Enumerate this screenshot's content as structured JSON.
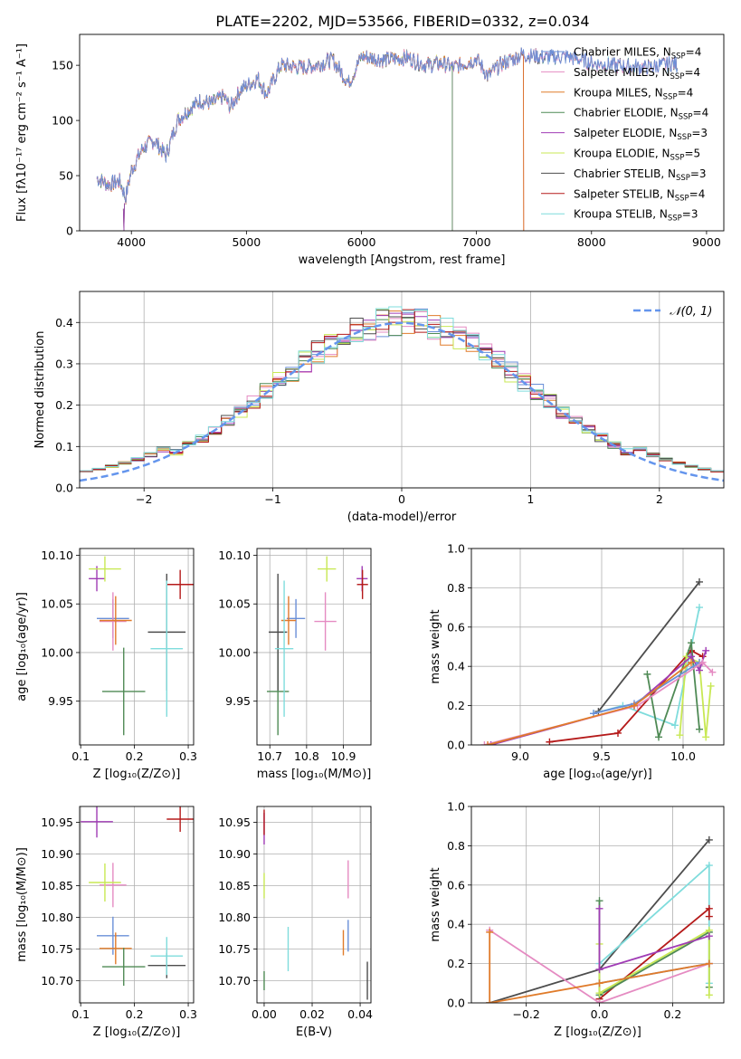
{
  "figure": {
    "title": "PLATE=2202, MJD=53566, FIBERID=0332, z=0.034"
  },
  "colors": {
    "chab_miles": "#6a8fd8",
    "salp_miles": "#e58bc2",
    "krou_miles": "#e07b2a",
    "chab_elodie": "#4f8a55",
    "salp_elodie": "#a03cb5",
    "krou_elodie": "#c8e854",
    "chab_stelib": "#4d4d4d",
    "salp_stelib": "#b51a1a",
    "krou_stelib": "#7fdcdc",
    "normal": "#6495ed"
  },
  "chart_data": [
    {
      "id": "spectrum",
      "type": "line",
      "xlabel": "wavelength [Angstrom, rest frame]",
      "ylabel": "Flux [fλ10⁻¹⁷ erg cm⁻² s⁻¹ A⁻¹]",
      "xlim": [
        3550,
        9150
      ],
      "ylim": [
        0,
        178
      ],
      "xticks": [
        4000,
        5000,
        6000,
        7000,
        8000,
        9000
      ],
      "yticks": [
        0,
        50,
        100,
        150
      ],
      "legend_position": "top-right",
      "series": [
        {
          "name": "Chabrier MILES, N",
          "sub": "SSP",
          "tail": "=4",
          "color": "chab_miles",
          "xmax": 8750
        },
        {
          "name": "Salpeter MILES, N",
          "sub": "SSP",
          "tail": "=4",
          "color": "salp_miles",
          "xmax": 8750
        },
        {
          "name": "Kroupa MILES, N",
          "sub": "SSP",
          "tail": "=4",
          "color": "krou_miles",
          "xmax": 7410
        },
        {
          "name": "Chabrier ELODIE, N",
          "sub": "SSP",
          "tail": "=4",
          "color": "chab_elodie",
          "xmax": 6790
        },
        {
          "name": "Salpeter ELODIE, N",
          "sub": "SSP",
          "tail": "=3",
          "color": "salp_elodie",
          "xmax": 6790
        },
        {
          "name": "Kroupa ELODIE, N",
          "sub": "SSP",
          "tail": "=5",
          "color": "krou_elodie",
          "xmax": 6790
        },
        {
          "name": "Chabrier STELIB, N",
          "sub": "SSP",
          "tail": "=3",
          "color": "chab_stelib",
          "xmax": 8750
        },
        {
          "name": "Salpeter STELIB, N",
          "sub": "SSP",
          "tail": "=4",
          "color": "salp_stelib",
          "xmax": 7410
        },
        {
          "name": "Kroupa STELIB, N",
          "sub": "SSP",
          "tail": "=3",
          "color": "krou_stelib",
          "xmax": 8750
        }
      ],
      "continuum": [
        [
          3700,
          48
        ],
        [
          3800,
          42
        ],
        [
          3900,
          45
        ],
        [
          3950,
          30
        ],
        [
          4000,
          55
        ],
        [
          4100,
          75
        ],
        [
          4200,
          82
        ],
        [
          4300,
          68
        ],
        [
          4400,
          100
        ],
        [
          4500,
          110
        ],
        [
          4600,
          118
        ],
        [
          4700,
          115
        ],
        [
          4800,
          122
        ],
        [
          4861,
          112
        ],
        [
          4950,
          128
        ],
        [
          5100,
          138
        ],
        [
          5175,
          124
        ],
        [
          5300,
          150
        ],
        [
          5500,
          148
        ],
        [
          5600,
          150
        ],
        [
          5750,
          155
        ],
        [
          5890,
          134
        ],
        [
          6000,
          158
        ],
        [
          6200,
          155
        ],
        [
          6400,
          157
        ],
        [
          6563,
          150
        ],
        [
          6700,
          152
        ],
        [
          6800,
          148
        ],
        [
          7000,
          156
        ],
        [
          7100,
          140
        ],
        [
          7200,
          150
        ],
        [
          7400,
          160
        ],
        [
          7600,
          157
        ],
        [
          7800,
          158
        ],
        [
          8000,
          152
        ],
        [
          8200,
          150
        ],
        [
          8500,
          148
        ],
        [
          8700,
          152
        ],
        [
          8750,
          150
        ]
      ]
    },
    {
      "id": "residuals",
      "type": "step",
      "xlabel": "(data-model)/error",
      "ylabel": "Normed distribution",
      "xlim": [
        -2.5,
        2.5
      ],
      "ylim": [
        0,
        0.475
      ],
      "xticks": [
        -2,
        -1,
        0,
        1,
        2
      ],
      "yticks": [
        0.0,
        0.1,
        0.2,
        0.3,
        0.4
      ],
      "bin_width": 0.1,
      "legend": "`N`(0, 1)",
      "legend_label": "𝒩(0, 1)",
      "legend_position": "top-right"
    },
    {
      "id": "age-Z",
      "type": "errorbar",
      "xlabel": "Z [log₁₀(Z/Z⊙)]",
      "ylabel": "age  [log₁₀(age/yr)]",
      "xlim": [
        0.098,
        0.31
      ],
      "ylim": [
        9.905,
        10.107
      ],
      "xticks": [
        0.1,
        0.2,
        0.3
      ],
      "yticks": [
        9.95,
        10.0,
        10.05,
        10.1
      ],
      "points": [
        {
          "c": "chab_miles",
          "x": 0.16,
          "xe": 0.03,
          "y": 10.035,
          "ye": 0.02
        },
        {
          "c": "salp_miles",
          "x": 0.16,
          "xe": 0.025,
          "y": 10.032,
          "ye": 0.03
        },
        {
          "c": "krou_miles",
          "x": 0.165,
          "xe": 0.03,
          "y": 10.033,
          "ye": 0.025
        },
        {
          "c": "chab_elodie",
          "x": 0.18,
          "xe": 0.04,
          "y": 9.96,
          "ye": 0.045
        },
        {
          "c": "salp_elodie",
          "x": 0.13,
          "xe": 0.015,
          "y": 10.076,
          "ye": 0.013
        },
        {
          "c": "krou_elodie",
          "x": 0.145,
          "xe": 0.03,
          "y": 10.086,
          "ye": 0.013
        },
        {
          "c": "chab_stelib",
          "x": 0.26,
          "xe": 0.035,
          "y": 10.021,
          "ye": 0.06
        },
        {
          "c": "salp_stelib",
          "x": 0.285,
          "xe": 0.025,
          "y": 10.07,
          "ye": 0.015
        },
        {
          "c": "krou_stelib",
          "x": 0.26,
          "xe": 0.03,
          "y": 10.004,
          "ye": 0.07
        }
      ]
    },
    {
      "id": "age-mass",
      "type": "errorbar",
      "xlabel": "mass [log₁₀(M/M⊙)]",
      "ylabel": "",
      "xlim": [
        10.665,
        10.975
      ],
      "ylim": [
        9.905,
        10.107
      ],
      "xticks": [
        10.7,
        10.8,
        10.9
      ],
      "yticks": [
        9.95,
        10.0,
        10.05,
        10.1
      ],
      "points": [
        {
          "c": "chab_miles",
          "x": 10.771,
          "xe": 0.025,
          "y": 10.035,
          "ye": 0.02
        },
        {
          "c": "salp_miles",
          "x": 10.851,
          "xe": 0.03,
          "y": 10.032,
          "ye": 0.03
        },
        {
          "c": "krou_miles",
          "x": 10.751,
          "xe": 0.02,
          "y": 10.033,
          "ye": 0.025
        },
        {
          "c": "chab_elodie",
          "x": 10.722,
          "xe": 0.03,
          "y": 9.96,
          "ye": 0.045
        },
        {
          "c": "salp_elodie",
          "x": 10.951,
          "xe": 0.015,
          "y": 10.076,
          "ye": 0.013
        },
        {
          "c": "krou_elodie",
          "x": 10.855,
          "xe": 0.025,
          "y": 10.086,
          "ye": 0.013
        },
        {
          "c": "chab_stelib",
          "x": 10.722,
          "xe": 0.025,
          "y": 10.021,
          "ye": 0.06
        },
        {
          "c": "salp_stelib",
          "x": 10.952,
          "xe": 0.015,
          "y": 10.07,
          "ye": 0.015
        },
        {
          "c": "krou_stelib",
          "x": 10.739,
          "xe": 0.025,
          "y": 10.004,
          "ye": 0.07
        }
      ]
    },
    {
      "id": "weight-age",
      "type": "line",
      "xlabel": "age  [log₁₀(age/yr)]",
      "ylabel": "mass weight",
      "xlim": [
        8.7,
        10.25
      ],
      "ylim": [
        0,
        1.0
      ],
      "xticks": [
        9.0,
        9.5,
        10.0
      ],
      "yticks": [
        0.0,
        0.2,
        0.4,
        0.6,
        0.8,
        1.0
      ],
      "series": [
        {
          "c": "chab_stelib",
          "pts": [
            [
              9.48,
              0.17
            ],
            [
              10.1,
              0.83
            ]
          ]
        },
        {
          "c": "krou_stelib",
          "pts": [
            [
              9.45,
              0.16
            ],
            [
              9.63,
              0.2
            ],
            [
              9.95,
              0.1
            ],
            [
              10.1,
              0.7
            ]
          ]
        },
        {
          "c": "salp_stelib",
          "pts": [
            [
              9.18,
              0.015
            ],
            [
              9.6,
              0.06
            ],
            [
              10.05,
              0.48
            ],
            [
              10.12,
              0.45
            ]
          ]
        },
        {
          "c": "chab_elodie",
          "pts": [
            [
              9.78,
              0.36
            ],
            [
              9.85,
              0.04
            ],
            [
              10.05,
              0.52
            ],
            [
              10.1,
              0.08
            ]
          ]
        },
        {
          "c": "krou_elodie",
          "pts": [
            [
              9.98,
              0.05
            ],
            [
              10.02,
              0.45
            ],
            [
              10.1,
              0.42
            ],
            [
              10.14,
              0.04
            ],
            [
              10.17,
              0.3
            ]
          ]
        },
        {
          "c": "salp_elodie",
          "pts": [
            [
              8.82,
              0.0
            ],
            [
              9.7,
              0.2
            ],
            [
              10.05,
              0.45
            ],
            [
              10.1,
              0.38
            ],
            [
              10.14,
              0.48
            ]
          ]
        },
        {
          "c": "chab_miles",
          "pts": [
            [
              9.45,
              0.16
            ],
            [
              9.7,
              0.21
            ],
            [
              10.1,
              0.42
            ]
          ]
        },
        {
          "c": "salp_miles",
          "pts": [
            [
              8.78,
              0.0
            ],
            [
              9.72,
              0.2
            ],
            [
              10.12,
              0.42
            ],
            [
              10.18,
              0.37
            ]
          ]
        },
        {
          "c": "krou_miles",
          "pts": [
            [
              8.8,
              0.0
            ],
            [
              9.7,
              0.2
            ],
            [
              10.05,
              0.42
            ]
          ]
        }
      ]
    },
    {
      "id": "mass-Z",
      "type": "errorbar",
      "xlabel": "Z [log₁₀(Z/Z⊙)]",
      "ylabel": "mass [log₁₀(M/M⊙)]",
      "xlim": [
        0.098,
        0.31
      ],
      "ylim": [
        10.665,
        10.975
      ],
      "xticks": [
        0.1,
        0.2,
        0.3
      ],
      "yticks": [
        10.7,
        10.75,
        10.8,
        10.85,
        10.9,
        10.95
      ],
      "points": [
        {
          "c": "chab_miles",
          "x": 0.16,
          "xe": 0.03,
          "y": 10.771,
          "ye": 0.03
        },
        {
          "c": "salp_miles",
          "x": 0.16,
          "xe": 0.025,
          "y": 10.851,
          "ye": 0.035
        },
        {
          "c": "krou_miles",
          "x": 0.165,
          "xe": 0.03,
          "y": 10.751,
          "ye": 0.025
        },
        {
          "c": "chab_elodie",
          "x": 0.18,
          "xe": 0.04,
          "y": 10.722,
          "ye": 0.03
        },
        {
          "c": "salp_elodie",
          "x": 0.13,
          "xe": 0.03,
          "y": 10.951,
          "ye": 0.025
        },
        {
          "c": "krou_elodie",
          "x": 0.145,
          "xe": 0.03,
          "y": 10.855,
          "ye": 0.03
        },
        {
          "c": "chab_stelib",
          "x": 0.26,
          "xe": 0.035,
          "y": 10.724,
          "ye": 0.02
        },
        {
          "c": "salp_stelib",
          "x": 0.285,
          "xe": 0.025,
          "y": 10.955,
          "ye": 0.02
        },
        {
          "c": "krou_stelib",
          "x": 0.26,
          "xe": 0.03,
          "y": 10.739,
          "ye": 0.03
        }
      ]
    },
    {
      "id": "mass-EBV",
      "type": "errorbar",
      "xlabel": "E(B-V)",
      "ylabel": "",
      "xlim": [
        -0.003,
        0.0445
      ],
      "ylim": [
        10.665,
        10.975
      ],
      "xticks": [
        0.0,
        0.02,
        0.04
      ],
      "yticks": [
        10.7,
        10.75,
        10.8,
        10.85,
        10.9,
        10.95
      ],
      "points": [
        {
          "c": "chab_miles",
          "x": 0.035,
          "xe": 0,
          "y": 10.771,
          "ye": 0.025
        },
        {
          "c": "salp_miles",
          "x": 0.035,
          "xe": 0,
          "y": 10.86,
          "ye": 0.03
        },
        {
          "c": "krou_miles",
          "x": 0.033,
          "xe": 0,
          "y": 10.76,
          "ye": 0.02
        },
        {
          "c": "chab_elodie",
          "x": 0.0,
          "xe": 0,
          "y": 10.7,
          "ye": 0.015
        },
        {
          "c": "salp_elodie",
          "x": 0.0,
          "xe": 0,
          "y": 10.94,
          "ye": 0.025
        },
        {
          "c": "krou_elodie",
          "x": 0.0,
          "xe": 0,
          "y": 10.85,
          "ye": 0.02
        },
        {
          "c": "chab_stelib",
          "x": 0.043,
          "xe": 0,
          "y": 10.7,
          "ye": 0.03
        },
        {
          "c": "salp_stelib",
          "x": 0.0,
          "xe": 0,
          "y": 10.95,
          "ye": 0.02
        },
        {
          "c": "krou_stelib",
          "x": 0.01,
          "xe": 0,
          "y": 10.75,
          "ye": 0.035
        }
      ]
    },
    {
      "id": "weight-Z",
      "type": "line",
      "xlabel": "Z [log₁₀(Z/Z⊙)]",
      "ylabel": "mass weight",
      "xlim": [
        -0.35,
        0.34
      ],
      "ylim": [
        0,
        1.0
      ],
      "xticks": [
        -0.2,
        0.0,
        0.2
      ],
      "yticks": [
        0.0,
        0.2,
        0.4,
        0.6,
        0.8,
        1.0
      ],
      "series": [
        {
          "c": "chab_stelib",
          "pts": [
            [
              -0.3,
              0.0
            ],
            [
              0.0,
              0.17
            ],
            [
              0.3,
              0.83
            ]
          ]
        },
        {
          "c": "krou_stelib",
          "pts": [
            [
              0.0,
              0.2
            ],
            [
              0.3,
              0.7
            ],
            [
              0.3,
              0.1
            ]
          ]
        },
        {
          "c": "salp_stelib",
          "pts": [
            [
              0.0,
              0.02
            ],
            [
              0.3,
              0.48
            ],
            [
              0.3,
              0.44
            ]
          ]
        },
        {
          "c": "chab_elodie",
          "pts": [
            [
              0.0,
              0.52
            ],
            [
              0.0,
              0.04
            ],
            [
              0.3,
              0.36
            ],
            [
              0.3,
              0.08
            ]
          ]
        },
        {
          "c": "krou_elodie",
          "pts": [
            [
              0.0,
              0.3
            ],
            [
              0.0,
              0.05
            ],
            [
              0.3,
              0.37
            ],
            [
              0.3,
              0.04
            ]
          ]
        },
        {
          "c": "salp_elodie",
          "pts": [
            [
              0.0,
              0.48
            ],
            [
              0.0,
              0.17
            ],
            [
              0.3,
              0.34
            ]
          ]
        },
        {
          "c": "chab_miles",
          "pts": [
            [
              0.0,
              0.1
            ],
            [
              0.3,
              0.2
            ]
          ]
        },
        {
          "c": "salp_miles",
          "pts": [
            [
              -0.3,
              0.37
            ],
            [
              0.0,
              0.0
            ],
            [
              0.3,
              0.2
            ]
          ]
        },
        {
          "c": "krou_miles",
          "pts": [
            [
              -0.3,
              0.36
            ],
            [
              -0.3,
              0.0
            ],
            [
              0.0,
              0.1
            ],
            [
              0.3,
              0.2
            ]
          ]
        }
      ]
    }
  ]
}
